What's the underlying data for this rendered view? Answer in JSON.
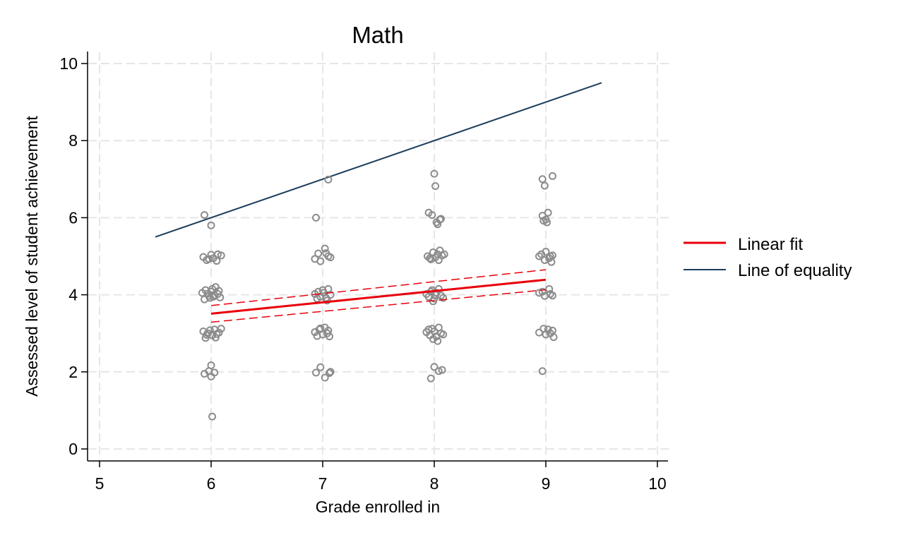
{
  "chart_data": {
    "type": "scatter",
    "title": "Math",
    "xlabel": "Grade enrolled in",
    "ylabel": "Assessed level of student achievement",
    "xlim": [
      5,
      10
    ],
    "ylim": [
      0,
      10
    ],
    "x_ticks": [
      5,
      6,
      7,
      8,
      9,
      10
    ],
    "y_ticks": [
      0,
      2,
      4,
      6,
      8,
      10
    ],
    "grid": true,
    "legend_position": "right",
    "colors": {
      "points": "#8c8c8c",
      "linear_fit": "#e8000b",
      "line_of_equality": "#1a3d5c",
      "grid": "#e6e6e6"
    },
    "scatter_points": [
      [
        5.94,
        6.07
      ],
      [
        6.0,
        5.8
      ],
      [
        5.93,
        4.98
      ],
      [
        5.98,
        4.93
      ],
      [
        6.02,
        4.95
      ],
      [
        6.06,
        5.05
      ],
      [
        5.96,
        4.9
      ],
      [
        6.09,
        5.02
      ],
      [
        6.05,
        4.88
      ],
      [
        6.0,
        5.04
      ],
      [
        5.92,
        4.05
      ],
      [
        5.95,
        4.12
      ],
      [
        5.98,
        3.97
      ],
      [
        6.0,
        4.08
      ],
      [
        6.02,
        3.95
      ],
      [
        6.04,
        4.2
      ],
      [
        6.06,
        4.02
      ],
      [
        6.08,
        3.93
      ],
      [
        5.94,
        3.88
      ],
      [
        6.01,
        4.15
      ],
      [
        5.97,
        4.03
      ],
      [
        6.03,
        3.99
      ],
      [
        6.07,
        4.1
      ],
      [
        5.99,
        3.92
      ],
      [
        5.93,
        3.05
      ],
      [
        5.96,
        2.96
      ],
      [
        5.99,
        3.08
      ],
      [
        6.01,
        2.95
      ],
      [
        6.03,
        3.1
      ],
      [
        6.05,
        2.98
      ],
      [
        6.07,
        3.02
      ],
      [
        5.95,
        2.88
      ],
      [
        6.09,
        3.12
      ],
      [
        6.04,
        2.89
      ],
      [
        5.97,
        3.0
      ],
      [
        5.94,
        1.95
      ],
      [
        5.98,
        2.02
      ],
      [
        6.0,
        1.88
      ],
      [
        6.0,
        2.17
      ],
      [
        6.03,
        1.98
      ],
      [
        6.01,
        0.84
      ],
      [
        7.05,
        6.99
      ],
      [
        6.94,
        6.0
      ],
      [
        6.96,
        5.07
      ],
      [
        6.93,
        4.93
      ],
      [
        7.02,
        5.2
      ],
      [
        7.05,
        5.0
      ],
      [
        7.07,
        4.97
      ],
      [
        6.98,
        4.87
      ],
      [
        7.03,
        5.08
      ],
      [
        6.93,
        4.02
      ],
      [
        6.96,
        4.08
      ],
      [
        6.98,
        3.95
      ],
      [
        7.01,
        4.05
      ],
      [
        7.03,
        3.92
      ],
      [
        7.05,
        4.15
      ],
      [
        7.07,
        4.0
      ],
      [
        6.95,
        3.9
      ],
      [
        7.0,
        4.12
      ],
      [
        7.04,
        3.85
      ],
      [
        6.93,
        3.03
      ],
      [
        6.95,
        2.93
      ],
      [
        6.97,
        3.1
      ],
      [
        7.0,
        2.97
      ],
      [
        7.02,
        3.15
      ],
      [
        7.04,
        3.0
      ],
      [
        7.06,
        2.92
      ],
      [
        6.98,
        3.13
      ],
      [
        7.05,
        3.07
      ],
      [
        6.94,
        1.98
      ],
      [
        6.98,
        2.12
      ],
      [
        7.02,
        1.85
      ],
      [
        7.06,
        1.97
      ],
      [
        7.07,
        2.0
      ],
      [
        8.0,
        7.14
      ],
      [
        8.01,
        6.82
      ],
      [
        7.95,
        6.13
      ],
      [
        7.98,
        6.07
      ],
      [
        8.02,
        5.88
      ],
      [
        8.05,
        5.95
      ],
      [
        8.03,
        5.83
      ],
      [
        8.06,
        5.97
      ],
      [
        7.94,
        5.0
      ],
      [
        7.96,
        4.95
      ],
      [
        7.99,
        5.1
      ],
      [
        8.01,
        4.97
      ],
      [
        8.03,
        5.05
      ],
      [
        8.05,
        5.15
      ],
      [
        8.07,
        5.02
      ],
      [
        7.97,
        4.92
      ],
      [
        8.04,
        4.9
      ],
      [
        8.09,
        5.05
      ],
      [
        7.93,
        4.02
      ],
      [
        7.95,
        3.95
      ],
      [
        7.98,
        4.12
      ],
      [
        8.0,
        3.9
      ],
      [
        8.02,
        4.05
      ],
      [
        8.04,
        4.15
      ],
      [
        8.06,
        3.98
      ],
      [
        7.99,
        3.83
      ],
      [
        8.08,
        3.92
      ],
      [
        7.97,
        4.08
      ],
      [
        8.01,
        4.0
      ],
      [
        7.93,
        3.03
      ],
      [
        7.96,
        2.95
      ],
      [
        7.98,
        3.12
      ],
      [
        8.0,
        3.05
      ],
      [
        8.02,
        2.92
      ],
      [
        8.04,
        3.15
      ],
      [
        8.06,
        3.0
      ],
      [
        8.08,
        2.97
      ],
      [
        7.99,
        2.85
      ],
      [
        8.03,
        2.8
      ],
      [
        7.95,
        3.1
      ],
      [
        7.97,
        1.83
      ],
      [
        8.0,
        2.13
      ],
      [
        8.04,
        2.02
      ],
      [
        8.07,
        2.05
      ],
      [
        9.06,
        7.08
      ],
      [
        8.97,
        7.0
      ],
      [
        8.99,
        6.83
      ],
      [
        9.02,
        6.13
      ],
      [
        8.97,
        6.05
      ],
      [
        9.0,
        5.95
      ],
      [
        9.01,
        5.88
      ],
      [
        8.98,
        5.92
      ],
      [
        8.96,
        5.05
      ],
      [
        9.0,
        5.12
      ],
      [
        9.04,
        5.0
      ],
      [
        9.03,
        4.95
      ],
      [
        8.99,
        4.9
      ],
      [
        9.05,
        4.85
      ],
      [
        8.94,
        5.0
      ],
      [
        9.06,
        5.02
      ],
      [
        8.94,
        4.05
      ],
      [
        8.97,
        4.08
      ],
      [
        9.03,
        4.15
      ],
      [
        9.04,
        4.02
      ],
      [
        9.06,
        3.98
      ],
      [
        8.99,
        3.97
      ],
      [
        8.94,
        3.02
      ],
      [
        8.98,
        3.12
      ],
      [
        9.0,
        2.97
      ],
      [
        9.02,
        3.1
      ],
      [
        9.04,
        3.0
      ],
      [
        9.06,
        3.07
      ],
      [
        9.07,
        2.9
      ],
      [
        8.97,
        2.02
      ]
    ],
    "series": [
      {
        "name": "Linear fit",
        "x": [
          6,
          9
        ],
        "y": [
          3.51,
          4.39
        ]
      },
      {
        "name": "Line of equality",
        "x": [
          5.5,
          9.5
        ],
        "y": [
          5.5,
          9.5
        ]
      }
    ],
    "confidence_band": {
      "x": [
        6,
        9
      ],
      "upper": [
        3.72,
        4.65
      ],
      "lower": [
        3.29,
        4.13
      ]
    },
    "legend": [
      "Linear fit",
      "Line of equality"
    ]
  }
}
